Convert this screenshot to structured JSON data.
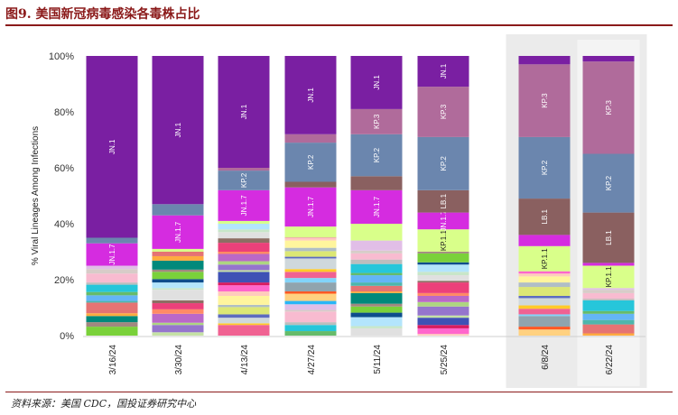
{
  "header": {
    "title": "图9. 美国新冠病毒感染各毒株占比"
  },
  "footer": {
    "source": "资料来源：美国 CDC，国投证券研究中心"
  },
  "chart_data": {
    "type": "bar",
    "stacked": true,
    "ylabel": "% Viral Lineages Among Infections",
    "ylim": [
      0,
      100
    ],
    "yticks": [
      "0%",
      "20%",
      "40%",
      "60%",
      "80%",
      "100%"
    ],
    "grid": false,
    "highlighted_categories": [
      "6/8/24",
      "6/22/24"
    ],
    "categories": [
      "3/16/24",
      "3/30/24",
      "4/13/24",
      "4/27/24",
      "5/11/24",
      "5/25/24",
      "6/8/24",
      "6/22/24"
    ],
    "colors": {
      "JN.1": "#7a1fa2",
      "JN.1.7": "#d52ce0",
      "KP.2": "#6b86ae",
      "KP.3": "#b06b9b",
      "LB.1": "#8a6060",
      "KP.1.1": "#d9ff8a",
      "others": [
        "#0e4d8c",
        "#ff66cc",
        "#29b6f6",
        "#7ad13a",
        "#d81b60",
        "#ffd180",
        "#a1887f",
        "#3f51b5",
        "#ff5722",
        "#00897b",
        "#c5e1a5",
        "#90a4ae",
        "#ffab40",
        "#9575cd",
        "#81d4fa",
        "#e57373",
        "#aed581",
        "#f06292",
        "#4db6ac",
        "#ba68c8",
        "#ffca28",
        "#64b5f6",
        "#ff8a65",
        "#cfd8dc",
        "#66bb6a",
        "#ec407a",
        "#5c6bc0",
        "#26c6da",
        "#8d6e63",
        "#dce775",
        "#bdbdbd",
        "#e0e0e0",
        "#b0bec5",
        "#f8bbd0",
        "#c8e6c9",
        "#fff59d",
        "#d7ccc8",
        "#b3e5fc",
        "#ffccbc",
        "#e1bee7"
      ]
    },
    "series": [
      {
        "name": "JN.1",
        "values": [
          65,
          53,
          40,
          28,
          19,
          11,
          3,
          2
        ]
      },
      {
        "name": "JN.1.7",
        "values": [
          8,
          12,
          11,
          14,
          12,
          6,
          4,
          1
        ]
      },
      {
        "name": "KP.2",
        "values": [
          2,
          4,
          7,
          14,
          15,
          19,
          22,
          21
        ]
      },
      {
        "name": "KP.3",
        "values": [
          0,
          0,
          1,
          3,
          9,
          18,
          26,
          33
        ]
      },
      {
        "name": "LB.1",
        "values": [
          0,
          0,
          0,
          2,
          5,
          8,
          13,
          18
        ]
      },
      {
        "name": "KP.1.1",
        "values": [
          0,
          1,
          1,
          4,
          6,
          8,
          9,
          8
        ]
      },
      {
        "name": "others",
        "values": [
          25,
          30,
          40,
          35,
          34,
          30,
          23,
          17
        ]
      }
    ],
    "bar_labels": {
      "3/16/24": [
        "JN.1",
        "JN.1.7"
      ],
      "3/30/24": [
        "JN.1",
        "JN.1.7"
      ],
      "4/13/24": [
        "JN.1",
        "KP.2",
        "JN.1.7"
      ],
      "4/27/24": [
        "JN.1",
        "KP.2",
        "JN.1.7"
      ],
      "5/11/24": [
        "JN.1",
        "KP.3",
        "KP.2",
        "JN.1.7"
      ],
      "5/25/24": [
        "JN.1",
        "KP.3",
        "KP.2",
        "LB.1",
        "JN.1.7",
        "KP.1.1"
      ],
      "6/8/24": [
        "KP.3",
        "KP.2",
        "LB.1",
        "KP.1.1"
      ],
      "6/22/24": [
        "KP.3",
        "KP.2",
        "LB.1",
        "KP.1.1"
      ]
    },
    "annotations": [
      "JN.1",
      "JN.1.7",
      "KP.2",
      "KP.3",
      "LB.1",
      "KP.1.1"
    ]
  }
}
